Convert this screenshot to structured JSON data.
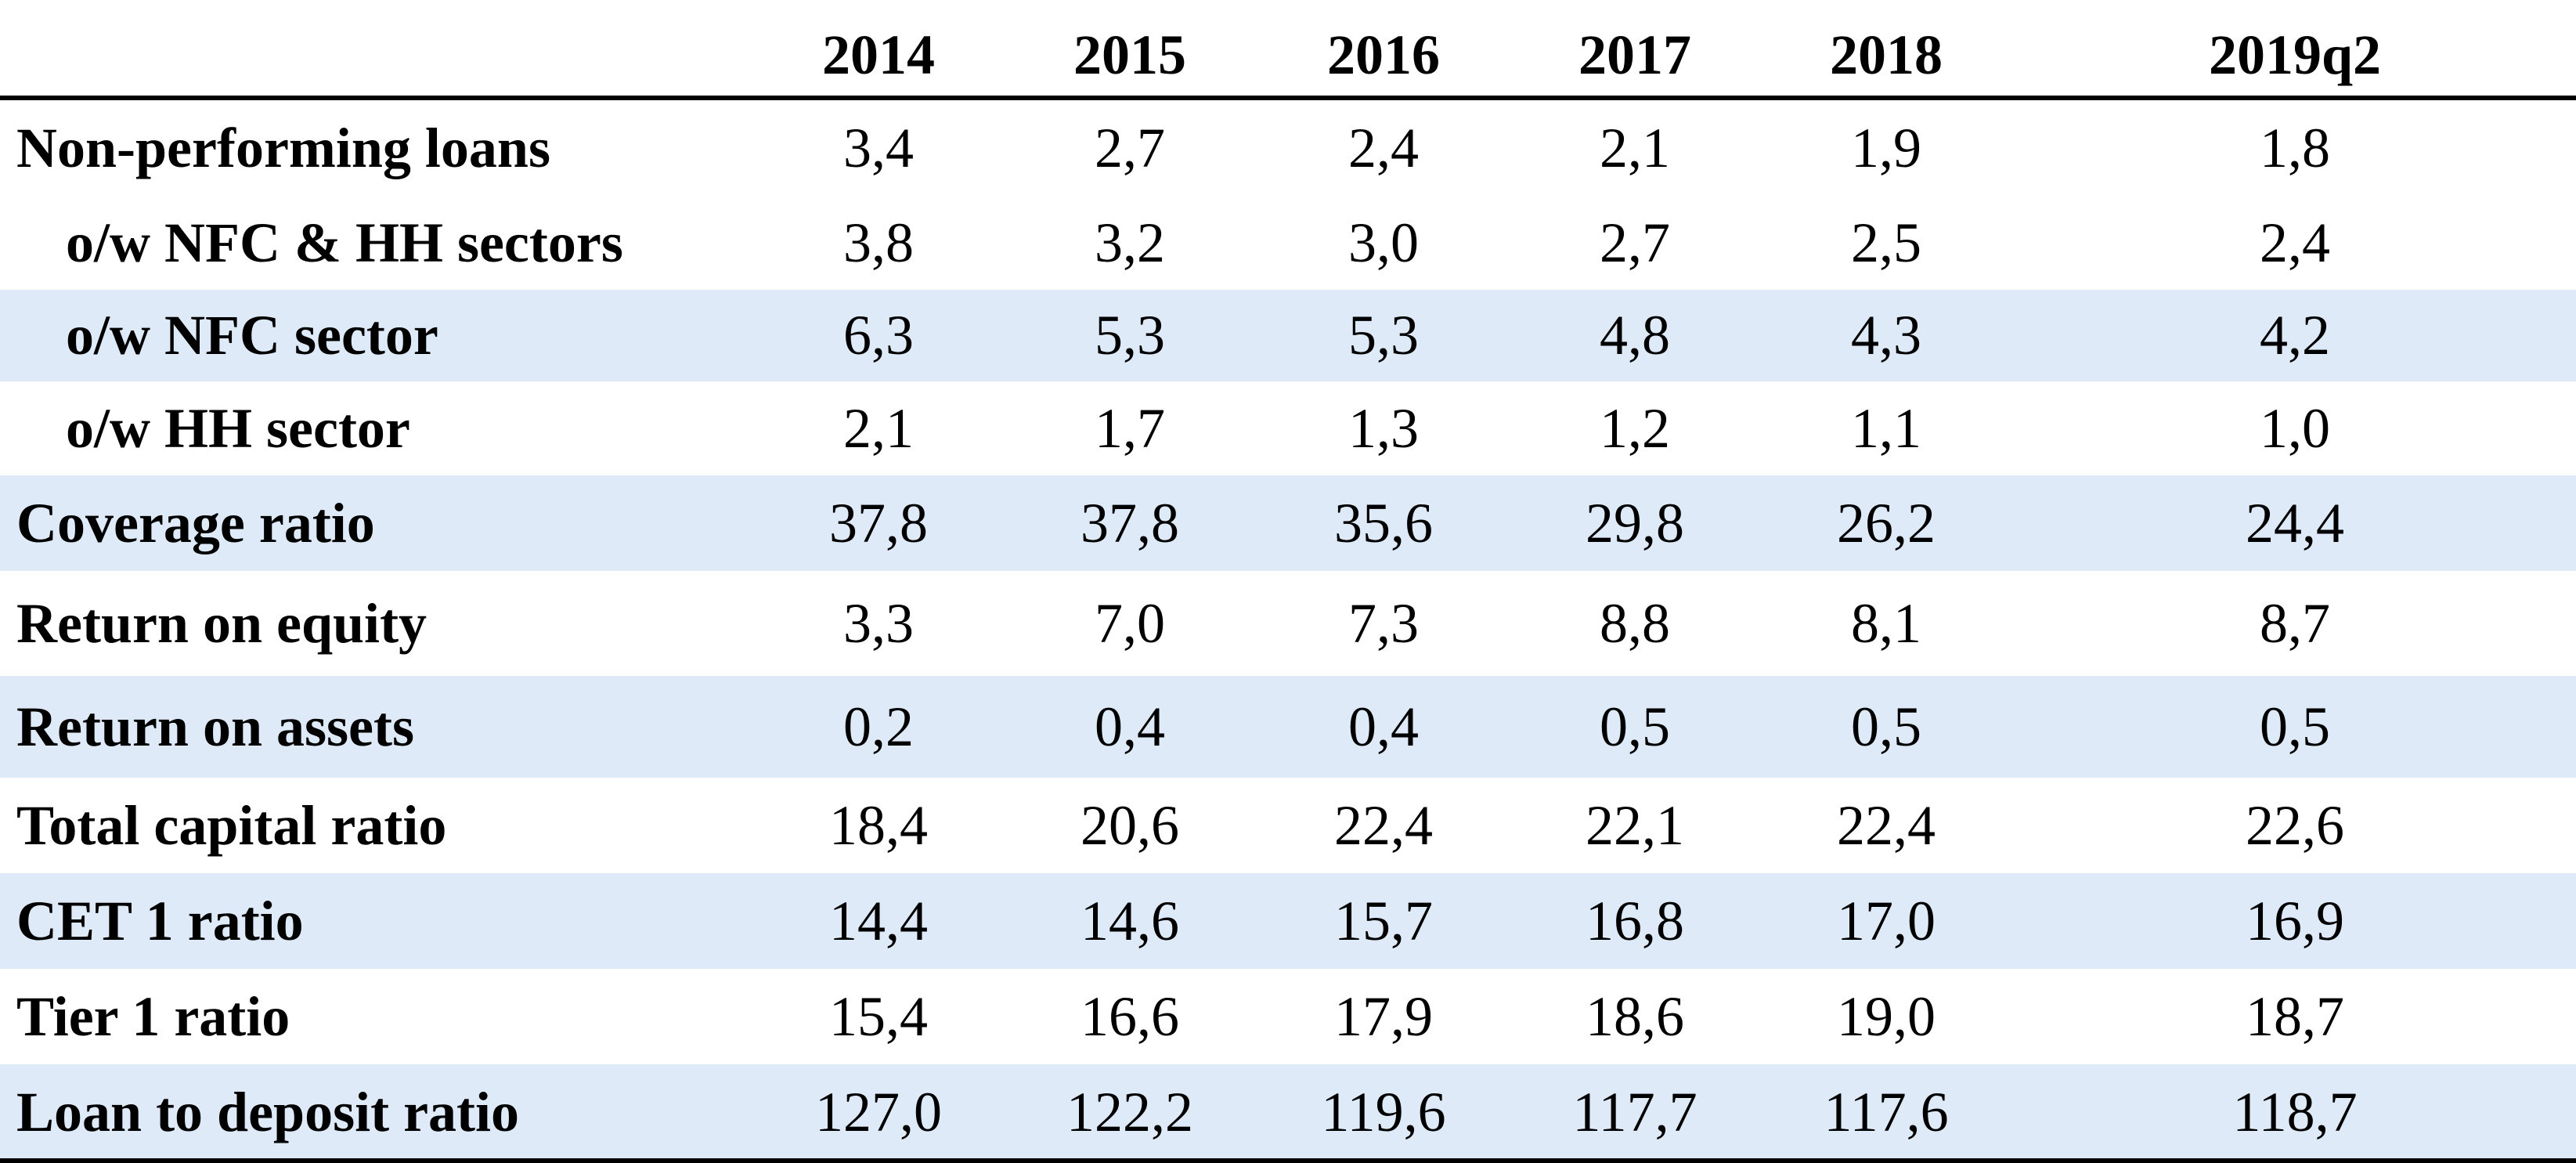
{
  "table": {
    "header": [
      "2014",
      "2015",
      "2016",
      "2017",
      "2018",
      "2019q2"
    ],
    "rows": [
      [
        "Non-performing loans",
        "3,4",
        "2,7",
        "2,4",
        "2,1",
        "1,9",
        "1,8"
      ],
      [
        "o/w NFC & HH sectors",
        "3,8",
        "3,2",
        "3,0",
        "2,7",
        "2,5",
        "2,4"
      ],
      [
        "o/w NFC sector",
        "6,3",
        "5,3",
        "5,3",
        "4,8",
        "4,3",
        "4,2"
      ],
      [
        "o/w HH sector",
        "2,1",
        "1,7",
        "1,3",
        "1,2",
        "1,1",
        "1,0"
      ],
      [
        "Coverage ratio",
        "37,8",
        "37,8",
        "35,6",
        "29,8",
        "26,2",
        "24,4"
      ],
      [
        "Return on equity",
        "3,3",
        "7,0",
        "7,3",
        "8,8",
        "8,1",
        "8,7"
      ],
      [
        "Return on assets",
        "0,2",
        "0,4",
        "0,4",
        "0,5",
        "0,5",
        "0,5"
      ],
      [
        "Total capital ratio",
        "18,4",
        "20,6",
        "22,4",
        "22,1",
        "22,4",
        "22,6"
      ],
      [
        "CET 1 ratio",
        "14,4",
        "14,6",
        "15,7",
        "16,8",
        "17,0",
        "16,9"
      ],
      [
        "Tier 1 ratio",
        "15,4",
        "16,6",
        "17,9",
        "18,6",
        "19,0",
        "18,7"
      ],
      [
        "Loan to deposit ratio",
        "127,0",
        "122,2",
        "119,6",
        "117,7",
        "117,6",
        "118,7"
      ]
    ]
  }
}
